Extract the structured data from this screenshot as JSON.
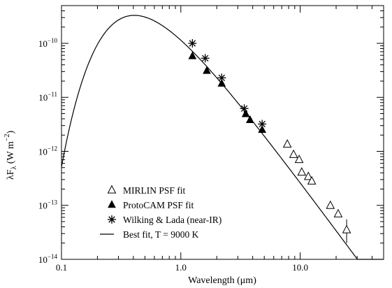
{
  "chart_data": {
    "type": "scatter",
    "x_scale": "log",
    "y_scale": "log",
    "xlim": [
      0.1,
      50
    ],
    "ylim": [
      1e-14,
      5e-10
    ],
    "xlabel": "Wavelength (μm)",
    "ylabel_main": "λF",
    "ylabel_sub": "λ",
    "ylabel_unit": " (W m",
    "ylabel_exp": "−2",
    "ylabel_close": ")",
    "x_ticks": [
      {
        "value": 0.1,
        "label": "0.1"
      },
      {
        "value": 1,
        "label": "1.0"
      },
      {
        "value": 10,
        "label": "10.0"
      }
    ],
    "y_ticks": [
      {
        "value": 1e-14,
        "base": "10",
        "exp": "−14"
      },
      {
        "value": 1e-13,
        "base": "10",
        "exp": "−13"
      },
      {
        "value": 1e-12,
        "base": "10",
        "exp": "−12"
      },
      {
        "value": 1e-11,
        "base": "10",
        "exp": "−11"
      },
      {
        "value": 1e-10,
        "base": "10",
        "exp": "−10"
      }
    ],
    "grid": false,
    "legend_position": "bottom-left",
    "series": [
      {
        "name": "MIRLIN PSF fit",
        "marker": "open-triangle",
        "points": [
          {
            "x": 7.8,
            "y": 1.35e-12
          },
          {
            "x": 8.8,
            "y": 8.7e-13
          },
          {
            "x": 9.8,
            "y": 7e-13
          },
          {
            "x": 10.3,
            "y": 4.1e-13
          },
          {
            "x": 11.7,
            "y": 3.4e-13
          },
          {
            "x": 12.5,
            "y": 2.8e-13
          },
          {
            "x": 17.9,
            "y": 9.9e-14
          },
          {
            "x": 20.8,
            "y": 6.9e-14
          },
          {
            "x": 24.5,
            "y": 3.5e-14,
            "err_lo": 2e-14,
            "err_hi": 5.5e-14
          }
        ]
      },
      {
        "name": "ProtoCAM PSF fit",
        "marker": "filled-triangle",
        "points": [
          {
            "x": 1.25,
            "y": 5.8e-11
          },
          {
            "x": 1.65,
            "y": 3.1e-11
          },
          {
            "x": 2.2,
            "y": 1.8e-11
          },
          {
            "x": 3.5,
            "y": 4.9e-12
          },
          {
            "x": 3.8,
            "y": 3.8e-12
          },
          {
            "x": 4.8,
            "y": 2.5e-12
          }
        ]
      },
      {
        "name": "Wilking & Lada (near-IR)",
        "marker": "asterisk",
        "points": [
          {
            "x": 1.25,
            "y": 1e-10
          },
          {
            "x": 1.6,
            "y": 5.3e-11
          },
          {
            "x": 2.2,
            "y": 2.3e-11
          },
          {
            "x": 3.4,
            "y": 6.2e-12
          },
          {
            "x": 4.8,
            "y": 3.2e-12
          }
        ]
      },
      {
        "name": "Best fit, T = 9000 K",
        "marker": "line",
        "model": "blackbody",
        "temperature_K": 9000
      }
    ]
  }
}
